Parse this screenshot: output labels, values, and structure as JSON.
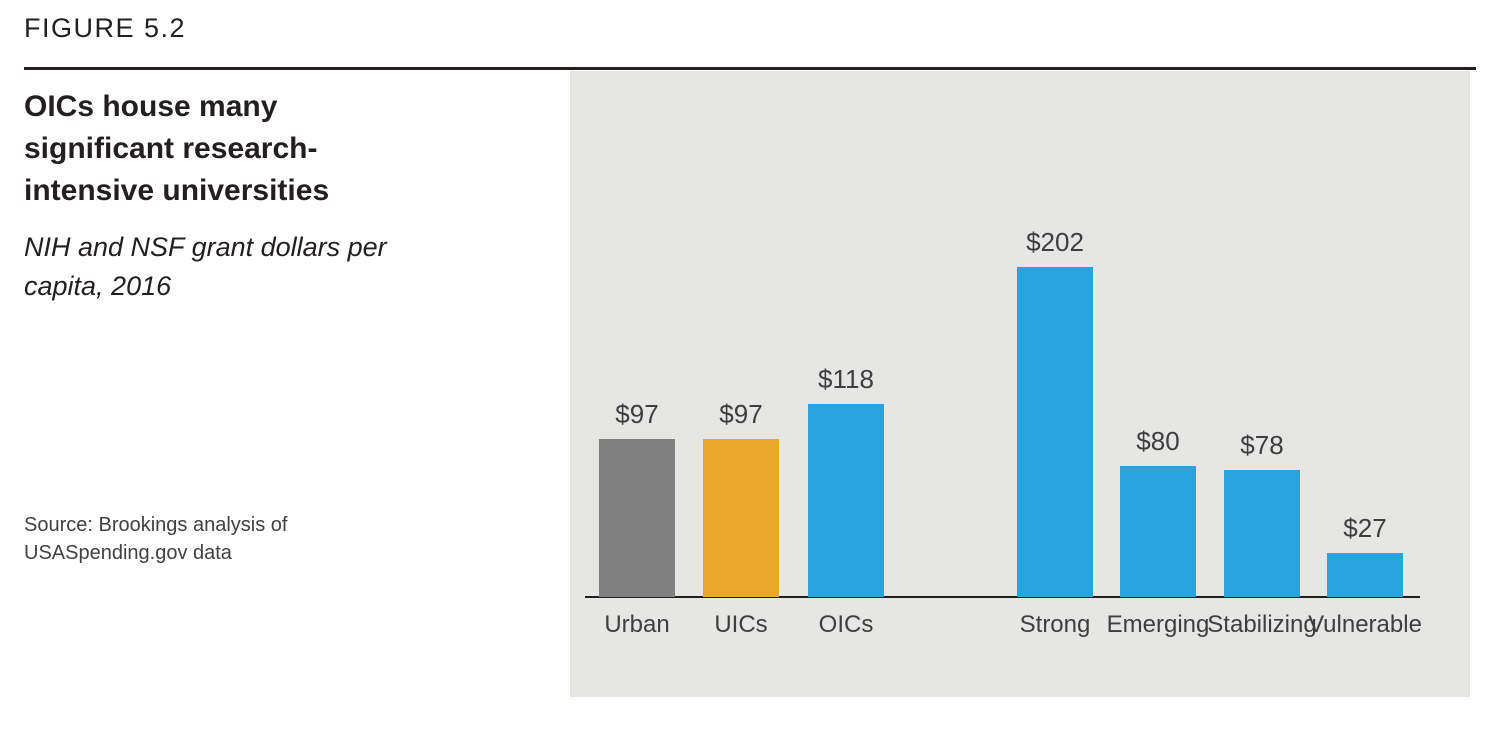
{
  "figure_label": "FIGURE 5.2",
  "header": {
    "title": "OICs house many significant research-intensive universities",
    "subtitle": "NIH and NSF grant dollars per capita, 2016"
  },
  "source_note": "Source: Brookings analysis of USASpending.gov data",
  "colors": {
    "panel_background": "#e6e6e5",
    "axis": "#231f20",
    "heading_text": "#231f20",
    "label_text": "#3e3e40",
    "urban_gray": "#808080",
    "uics_orange": "#eaa72b",
    "accent_blue": "#29a4df"
  },
  "chart_data": {
    "type": "bar",
    "title": "OICs house many significant research-intensive universities",
    "subtitle": "NIH and NSF grant dollars per capita, 2016",
    "xlabel": "",
    "ylabel": "NIH and NSF grant dollars per capita",
    "year": 2016,
    "grid": false,
    "legend": "none",
    "ylim": [
      0,
      220
    ],
    "categories": [
      "Urban",
      "UICs",
      "OICs",
      "Strong",
      "Emerging",
      "Stabilizing",
      "Vulnerable"
    ],
    "values": [
      97,
      97,
      118,
      202,
      80,
      78,
      27
    ],
    "value_labels": [
      "$97",
      "$97",
      "$118",
      "$202",
      "$80",
      "$78",
      "$27"
    ],
    "bar_colors": [
      "#808080",
      "#eaa72b",
      "#29a4df",
      "#29a4df",
      "#29a4df",
      "#29a4df",
      "#29a4df"
    ],
    "group_break_after": "OICs"
  }
}
